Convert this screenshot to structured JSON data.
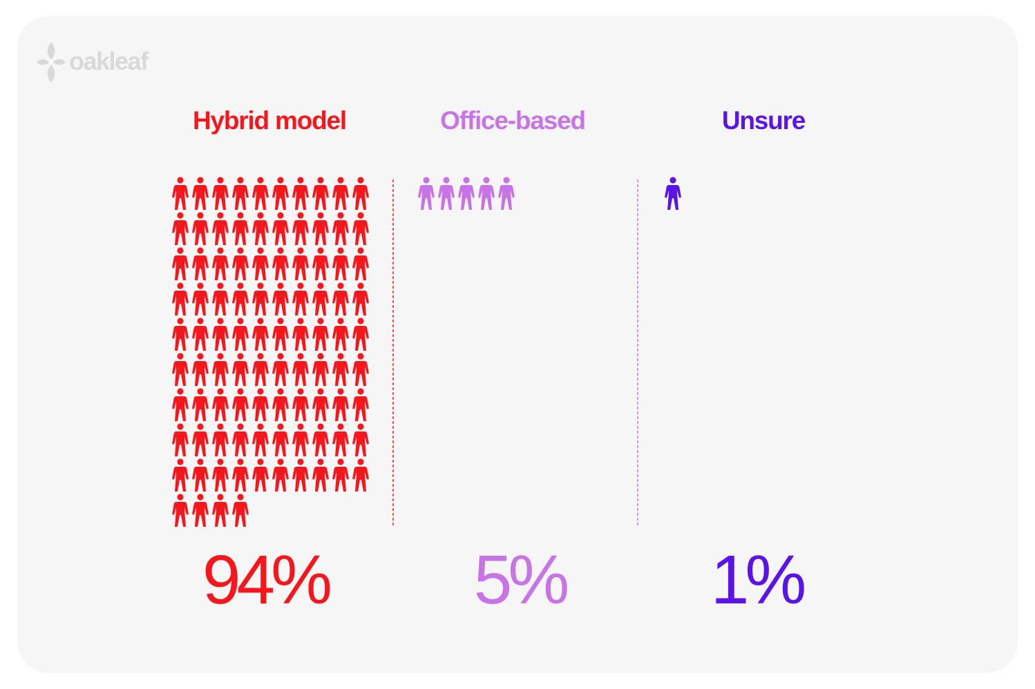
{
  "brand": {
    "name": "oakleaf",
    "color": "#d9d9d9",
    "icon": "leaf-logo-icon"
  },
  "chart_data": {
    "type": "pictogram",
    "unit_icon": "person-icon",
    "categories": [
      "Hybrid model",
      "Office-based",
      "Unsure"
    ],
    "values": [
      94,
      5,
      1
    ],
    "value_labels": [
      "94%",
      "5%",
      "1%"
    ],
    "colors": [
      "#f5171c",
      "#c873e6",
      "#5b14e6"
    ],
    "icons_per_row": 10,
    "dividers": "dashed"
  }
}
